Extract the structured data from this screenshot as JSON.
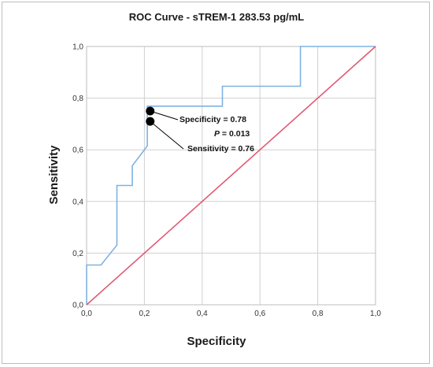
{
  "chart_data": {
    "type": "line",
    "title": "ROC Curve - sTREM-1 283.53 pg/mL",
    "xlabel": "Specificity",
    "ylabel": "Sensitivity",
    "xlim": [
      0.0,
      1.0
    ],
    "ylim": [
      0.0,
      1.0
    ],
    "xticks": [
      "0,0",
      "0,2",
      "0,4",
      "0,6",
      "0,8",
      "1,0"
    ],
    "yticks": [
      "0,0",
      "0,2",
      "0,4",
      "0,6",
      "0,8",
      "1,0"
    ],
    "grid": true,
    "series": [
      {
        "color": "#7fb2e3",
        "x": [
          0.0,
          0.0,
          0.05,
          0.105,
          0.105,
          0.158,
          0.158,
          0.21,
          0.21,
          0.21,
          0.47,
          0.47,
          0.74,
          0.74,
          1.0
        ],
        "y": [
          0.0,
          0.154,
          0.154,
          0.231,
          0.462,
          0.462,
          0.538,
          0.615,
          0.692,
          0.769,
          0.769,
          0.846,
          0.846,
          1.0,
          1.0
        ]
      },
      {
        "color": "#e05a75",
        "x": [
          0.0,
          1.0
        ],
        "y": [
          0.0,
          1.0
        ]
      }
    ],
    "points": [
      {
        "x": 0.22,
        "y": 0.75
      },
      {
        "x": 0.22,
        "y": 0.71
      }
    ],
    "annotations": {
      "specificity": "Specificity = 0.78",
      "p_label": "P",
      "p_value": " = 0.013",
      "sensitivity": "Sensitivity = 0.76"
    }
  }
}
